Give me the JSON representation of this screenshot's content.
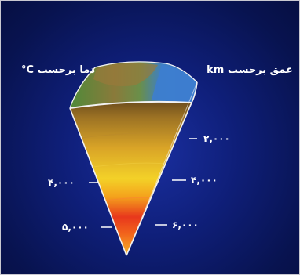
{
  "depth_label": "عمق برحسب km",
  "temperature_label": "دما برحسب C°",
  "depth_ticks": [
    "۲,۰۰۰",
    "۴,۰۰۰",
    "۶,۰۰۰"
  ],
  "temperature_ticks": [
    "۴,۰۰۰",
    "۵,۰۰۰"
  ]
}
